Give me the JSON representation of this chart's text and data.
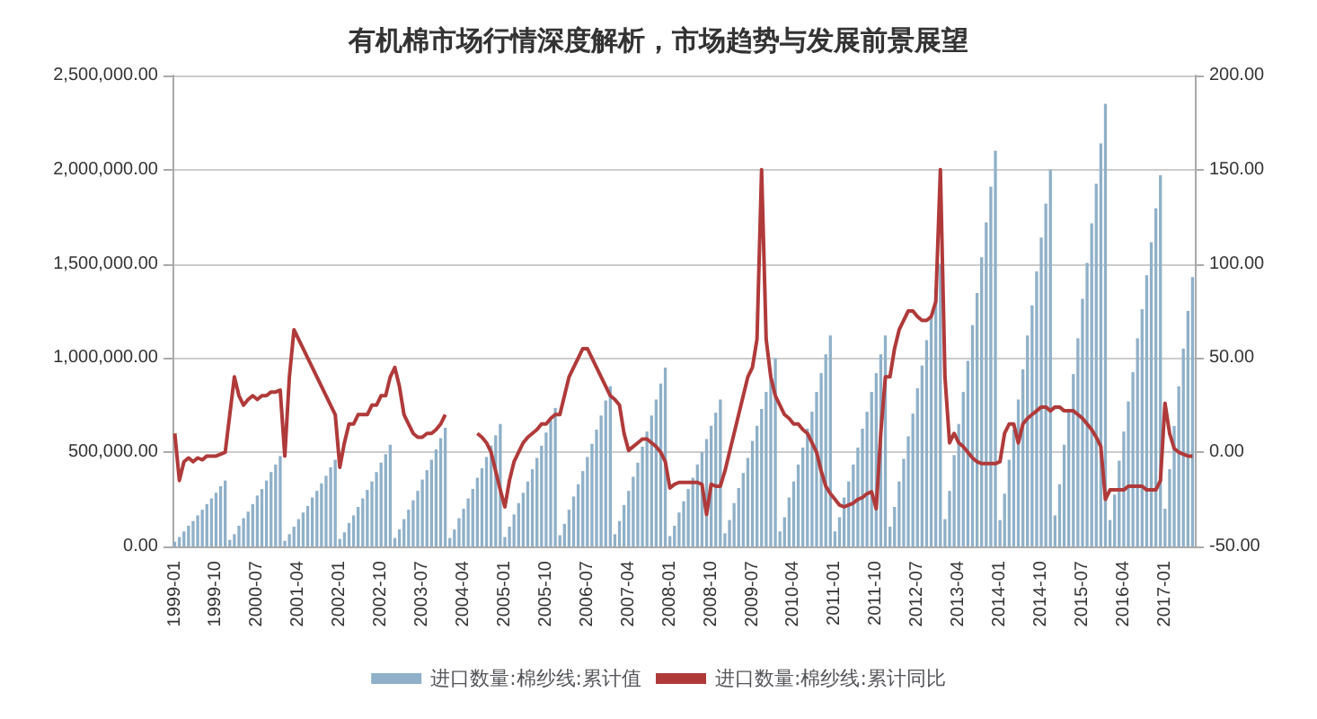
{
  "chart_data": {
    "type": "bar",
    "title": "有机棉市场行情深度解析，市场趋势与发展前景展望",
    "categories": [
      "1999-01",
      null,
      null,
      null,
      null,
      null,
      null,
      null,
      null,
      "1999-10",
      null,
      null,
      null,
      null,
      null,
      null,
      null,
      null,
      "2000-07",
      null,
      null,
      null,
      null,
      null,
      null,
      null,
      null,
      "2001-04",
      null,
      null,
      null,
      null,
      null,
      null,
      null,
      null,
      "2002-01",
      null,
      null,
      null,
      null,
      null,
      null,
      null,
      null,
      "2002-10",
      null,
      null,
      null,
      null,
      null,
      null,
      null,
      null,
      "2003-07",
      null,
      null,
      null,
      null,
      null,
      null,
      null,
      null,
      "2004-04",
      null,
      null,
      null,
      null,
      null,
      null,
      null,
      null,
      "2005-01",
      null,
      null,
      null,
      null,
      null,
      null,
      null,
      null,
      "2005-10",
      null,
      null,
      null,
      null,
      null,
      null,
      null,
      null,
      "2006-07",
      null,
      null,
      null,
      null,
      null,
      null,
      null,
      null,
      "2007-04",
      null,
      null,
      null,
      null,
      null,
      null,
      null,
      null,
      "2008-01",
      null,
      null,
      null,
      null,
      null,
      null,
      null,
      null,
      "2008-10",
      null,
      null,
      null,
      null,
      null,
      null,
      null,
      null,
      "2009-07",
      null,
      null,
      null,
      null,
      null,
      null,
      null,
      null,
      "2010-04",
      null,
      null,
      null,
      null,
      null,
      null,
      null,
      null,
      "2011-01",
      null,
      null,
      null,
      null,
      null,
      null,
      null,
      null,
      "2011-10",
      null,
      null,
      null,
      null,
      null,
      null,
      null,
      null,
      "2012-07",
      null,
      null,
      null,
      null,
      null,
      null,
      null,
      null,
      "2013-04",
      null,
      null,
      null,
      null,
      null,
      null,
      null,
      null,
      "2014-01",
      null,
      null,
      null,
      null,
      null,
      null,
      null,
      null,
      "2014-10",
      null,
      null,
      null,
      null,
      null,
      null,
      null,
      null,
      "2015-07",
      null,
      null,
      null,
      null,
      null,
      null,
      null,
      null,
      "2016-04",
      null,
      null,
      null,
      null,
      null,
      null,
      null,
      null,
      "2017-01",
      null,
      null,
      null,
      null,
      null,
      null
    ],
    "series": [
      {
        "name": "进口数量:棉纱线:累计值",
        "color": "#8fb0c8",
        "values": [
          25000,
          50000,
          80000,
          110000,
          135000,
          165000,
          195000,
          225000,
          255000,
          285000,
          320000,
          350000,
          35000,
          65000,
          110000,
          150000,
          185000,
          225000,
          270000,
          305000,
          350000,
          395000,
          435000,
          480000,
          30000,
          65000,
          105000,
          145000,
          180000,
          215000,
          260000,
          295000,
          335000,
          375000,
          420000,
          460000,
          40000,
          75000,
          125000,
          165000,
          210000,
          255000,
          300000,
          345000,
          395000,
          445000,
          490000,
          540000,
          45000,
          90000,
          145000,
          195000,
          245000,
          295000,
          355000,
          405000,
          460000,
          515000,
          575000,
          630000,
          45000,
          90000,
          150000,
          200000,
          255000,
          305000,
          365000,
          415000,
          475000,
          535000,
          590000,
          650000,
          50000,
          105000,
          170000,
          230000,
          285000,
          345000,
          410000,
          470000,
          535000,
          605000,
          670000,
          735000,
          60000,
          120000,
          195000,
          265000,
          330000,
          400000,
          475000,
          545000,
          620000,
          695000,
          775000,
          850000,
          65000,
          135000,
          220000,
          295000,
          370000,
          445000,
          530000,
          610000,
          695000,
          780000,
          865000,
          950000,
          55000,
          110000,
          180000,
          240000,
          305000,
          365000,
          435000,
          500000,
          570000,
          640000,
          710000,
          780000,
          70000,
          140000,
          230000,
          310000,
          390000,
          470000,
          560000,
          640000,
          730000,
          820000,
          910000,
          1000000,
          80000,
          155000,
          260000,
          345000,
          435000,
          525000,
          625000,
          715000,
          820000,
          920000,
          1020000,
          1120000,
          80000,
          155000,
          260000,
          345000,
          435000,
          525000,
          625000,
          715000,
          820000,
          920000,
          1020000,
          1120000,
          105000,
          210000,
          345000,
          465000,
          585000,
          705000,
          840000,
          960000,
          1095000,
          1230000,
          1365000,
          1500000,
          145000,
          295000,
          485000,
          650000,
          820000,
          985000,
          1175000,
          1345000,
          1535000,
          1720000,
          1910000,
          2100000,
          140000,
          280000,
          460000,
          620000,
          780000,
          940000,
          1120000,
          1280000,
          1460000,
          1640000,
          1820000,
          2000000,
          165000,
          330000,
          540000,
          730000,
          915000,
          1105000,
          1315000,
          1505000,
          1715000,
          1925000,
          2140000,
          2350000,
          140000,
          275000,
          455000,
          610000,
          770000,
          925000,
          1105000,
          1260000,
          1440000,
          1615000,
          1795000,
          1970000,
          200000,
          410000,
          640000,
          850000,
          1050000,
          1250000,
          1430000
        ]
      },
      {
        "name": "进口数量:棉纱线:累计同比",
        "type": "line",
        "axis": "y2",
        "color": "#b03a3a",
        "values": [
          10,
          -15,
          -5,
          -3,
          -5,
          -3,
          -4,
          -2,
          -2,
          -2,
          -1,
          0,
          20,
          40,
          30,
          25,
          28,
          30,
          28,
          30,
          30,
          32,
          32,
          33,
          -2,
          40,
          65,
          60,
          55,
          50,
          45,
          40,
          35,
          30,
          25,
          20,
          -8,
          5,
          15,
          15,
          20,
          20,
          20,
          25,
          25,
          30,
          30,
          40,
          45,
          35,
          20,
          15,
          10,
          8,
          8,
          10,
          10,
          12,
          15,
          20,
          null,
          null,
          null,
          null,
          null,
          null,
          10,
          8,
          5,
          0,
          -10,
          -20,
          -29,
          -15,
          -5,
          0,
          5,
          8,
          10,
          12,
          15,
          15,
          18,
          20,
          20,
          30,
          40,
          45,
          50,
          55,
          55,
          50,
          45,
          40,
          35,
          30,
          28,
          25,
          10,
          1,
          3,
          5,
          7,
          7,
          5,
          3,
          0,
          -5,
          -19,
          -17,
          -16,
          -16,
          -16,
          -16,
          -16,
          -17,
          -33,
          -17,
          -18,
          -18,
          -10,
          0,
          10,
          20,
          30,
          40,
          45,
          60,
          150,
          60,
          40,
          30,
          25,
          20,
          18,
          15,
          15,
          12,
          10,
          5,
          0,
          -10,
          -18,
          -22,
          -25,
          -28,
          -29,
          -28,
          -27,
          -25,
          -24,
          -22,
          -21,
          -30,
          10,
          40,
          40,
          55,
          65,
          70,
          75,
          75,
          72,
          70,
          70,
          72,
          80,
          150,
          40,
          5,
          10,
          5,
          3,
          0,
          -3,
          -5,
          -6,
          -6,
          -6,
          -6,
          -5,
          10,
          15,
          15,
          5,
          15,
          18,
          20,
          22,
          24,
          24,
          22,
          24,
          24,
          22,
          22,
          22,
          20,
          18,
          15,
          12,
          8,
          3,
          -25,
          -20,
          -20,
          -20,
          -20,
          -18,
          -18,
          -18,
          -18,
          -20,
          -20,
          -20,
          -15,
          26,
          10,
          2,
          0,
          -1,
          -2,
          -2
        ]
      }
    ],
    "ylim": [
      0,
      2500000
    ],
    "yticks": [
      {
        "value": 0,
        "label": "0.00"
      },
      {
        "value": 500000,
        "label": "500,000.00"
      },
      {
        "value": 1000000,
        "label": "1,000,000.00"
      },
      {
        "value": 1500000,
        "label": "1,500,000.00"
      },
      {
        "value": 2000000,
        "label": "2,000,000.00"
      },
      {
        "value": 2500000,
        "label": "2,500,000.00"
      }
    ],
    "y2lim": [
      -50,
      200
    ],
    "y2ticks": [
      {
        "value": -50,
        "label": "-50.00"
      },
      {
        "value": 0,
        "label": "0.00"
      },
      {
        "value": 50,
        "label": "50.00"
      },
      {
        "value": 100,
        "label": "100.00"
      },
      {
        "value": 150,
        "label": "150.00"
      },
      {
        "value": 200,
        "label": "200.00"
      }
    ],
    "grid": "y",
    "legend": "bottom",
    "marker": "none"
  }
}
